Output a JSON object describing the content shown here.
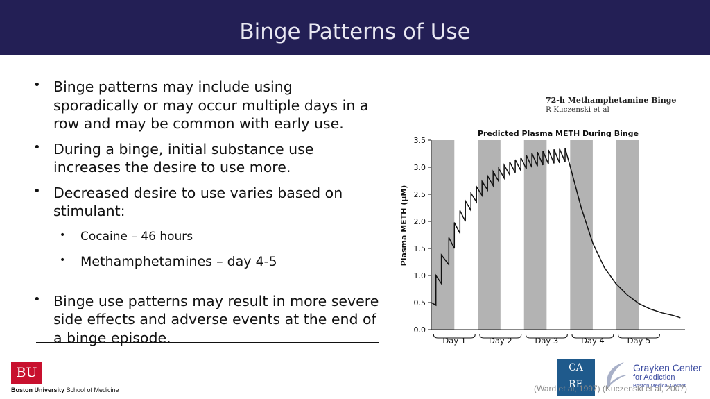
{
  "slide": {
    "title": "Binge Patterns of Use",
    "bullets": [
      "Binge patterns may include using sporadically or may occur multiple days in a row and may be common with early use.",
      "During a binge, initial substance use increases the desire to use more.",
      "Decreased desire to use varies based on stimulant:",
      "Binge use patterns may result in more severe side effects and adverse events at the end of a binge episode."
    ],
    "sub_bullets": [
      "Cocaine – 46 hours",
      "Methamphetamines – day 4-5"
    ],
    "citation": "(Ward et al, 1997) (Kuczenski et al, 2007)"
  },
  "figure": {
    "title": "72-h Methamphetamine Binge",
    "author": "R Kuczenski et al"
  },
  "logos": {
    "bu_mark": "BU",
    "bu_bold": "Boston University",
    "bu_rest": " School of Medicine",
    "care_line1": "CA",
    "care_line2": "RE",
    "grayken_line1": "Grayken Center",
    "grayken_line2": "for Addiction",
    "grayken_line3": "Boston Medical Center",
    "grayken_color": "#3a4aa0"
  },
  "theme": {
    "title_bar": "#231f55",
    "bu_red": "#c8102e",
    "binge_band": "#b3b3b3"
  },
  "chart_data": {
    "type": "line",
    "title": "Predicted Plasma METH During Binge",
    "ylabel": "Plasma METH (μM)",
    "xlabel": "",
    "ylim": [
      0,
      3.5
    ],
    "yticks": [
      0.0,
      0.5,
      1.0,
      1.5,
      2.0,
      2.5,
      3.0,
      3.5
    ],
    "xlim": [
      0,
      5.5
    ],
    "day_labels": [
      "Day 1",
      "Day 2",
      "Day 3",
      "Day 4",
      "Day 5"
    ],
    "binge_band_days": [
      1,
      2,
      3,
      4,
      5
    ],
    "series": [
      {
        "x": [
          0.0,
          0.1,
          0.1,
          0.22,
          0.22,
          0.38,
          0.38,
          0.5,
          0.5,
          0.62,
          0.62,
          0.74,
          0.74,
          0.86,
          0.86,
          0.98,
          0.98,
          1.1,
          1.1,
          1.22,
          1.22,
          1.34,
          1.34,
          1.46,
          1.46,
          1.58,
          1.58,
          1.7,
          1.7,
          1.82,
          1.82,
          1.94,
          1.94,
          2.06,
          2.06,
          2.18,
          2.18,
          2.3,
          2.3,
          2.42,
          2.42,
          2.54,
          2.54,
          2.66,
          2.66,
          2.78,
          2.78,
          2.9,
          2.9,
          3.0,
          3.25,
          3.5,
          3.75,
          4.0,
          4.25,
          4.5,
          4.75,
          5.0,
          5.25,
          5.4
        ],
        "y": [
          0.5,
          0.45,
          1.0,
          0.85,
          1.38,
          1.2,
          1.7,
          1.5,
          1.98,
          1.78,
          2.2,
          2.0,
          2.38,
          2.2,
          2.52,
          2.36,
          2.64,
          2.48,
          2.74,
          2.58,
          2.84,
          2.66,
          2.92,
          2.74,
          2.98,
          2.8,
          3.04,
          2.86,
          3.1,
          2.9,
          3.14,
          2.94,
          3.18,
          2.97,
          3.22,
          3.0,
          3.26,
          3.02,
          3.28,
          3.04,
          3.3,
          3.06,
          3.32,
          3.07,
          3.33,
          3.08,
          3.34,
          3.1,
          3.35,
          3.05,
          2.25,
          1.6,
          1.15,
          0.85,
          0.64,
          0.48,
          0.38,
          0.31,
          0.26,
          0.22
        ]
      }
    ]
  }
}
